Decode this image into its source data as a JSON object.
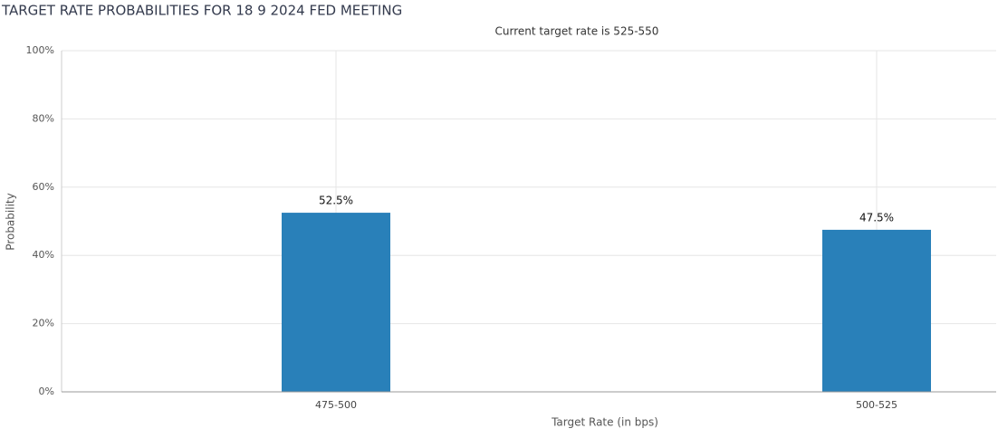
{
  "chart_data": {
    "type": "bar",
    "title": "TARGET RATE PROBABILITIES FOR 18 9 2024 FED MEETING",
    "subtitle": "Current target rate is 525-550",
    "x_label": "Target Rate (in bps)",
    "y_label": "Probability",
    "categories": [
      "475-500",
      "500-525"
    ],
    "values": [
      52.5,
      47.5
    ],
    "value_labels": [
      "52.5%",
      "47.5%"
    ],
    "color": "#2980b9",
    "ylim": [
      0,
      100
    ],
    "yticks": [
      {
        "value": 0,
        "label": "0%"
      },
      {
        "value": 20,
        "label": "20%"
      },
      {
        "value": 40,
        "label": "40%"
      },
      {
        "value": 60,
        "label": "60%"
      },
      {
        "value": 80,
        "label": "80%"
      },
      {
        "value": 100,
        "label": "100%"
      }
    ],
    "grid": true
  }
}
